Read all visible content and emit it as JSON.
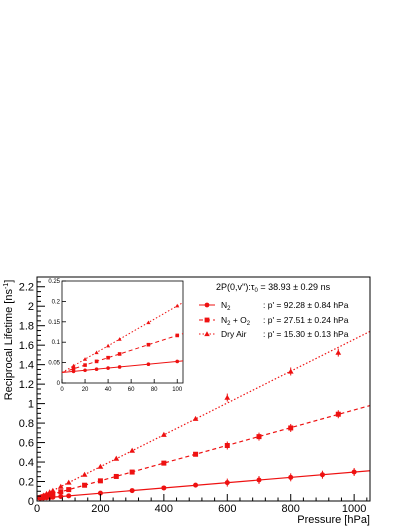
{
  "chart_data": [
    {
      "type": "scatter",
      "panel": "main",
      "xlabel": "Pressure [hPa]",
      "ylabel": "Reciprocal Lifetime [ns",
      "ylabel_sup": "-1",
      "ylabel_close": "]",
      "xlim": [
        0,
        1050
      ],
      "ylim": [
        0,
        2.3
      ],
      "x_ticks": [
        0,
        200,
        400,
        600,
        800,
        1000
      ],
      "y_ticks": [
        0,
        0.2,
        0.4,
        0.6,
        0.8,
        1,
        1.2,
        1.4,
        1.6,
        1.8,
        2,
        2.2
      ],
      "x_tick_labels": [
        "0",
        "200",
        "400",
        "600",
        "800",
        "1000"
      ],
      "y_tick_labels": [
        "0",
        "0.2",
        "0.4",
        "0.6",
        "0.8",
        "1",
        "1.2",
        "1.4",
        "1.6",
        "1.8",
        "2",
        "2.2"
      ],
      "grid": false,
      "legend_placement": "top-right",
      "legend_header": {
        "prefix": "2P(0,v'′):τ",
        "sub": "0",
        "value": " = 38.93 ± 0.29 ns"
      },
      "intercept": 0.0257,
      "color": "#ee1111",
      "series": [
        {
          "name": "N2",
          "label_main": "N",
          "label_sub": "2",
          "label_suffix": "",
          "fit_text": ": p' = 92.28 ± 0.84 hPa",
          "marker": "circle",
          "line": "solid",
          "slope": 0.000271,
          "x": [
            10,
            20,
            30,
            40,
            50,
            75,
            100,
            200,
            300,
            400,
            500,
            600,
            700,
            800,
            900,
            1000
          ],
          "y": [
            0.029,
            0.031,
            0.034,
            0.036,
            0.039,
            0.046,
            0.053,
            0.081,
            0.107,
            0.134,
            0.163,
            0.189,
            0.216,
            0.243,
            0.27,
            0.298
          ]
        },
        {
          "name": "N2 + O2",
          "label_main": "N",
          "label_sub": "2",
          "label_suffix": " + O",
          "label_sub2": "2",
          "fit_text": ": p' = 27.51 ± 0.24 hPa",
          "marker": "square",
          "line": "dashed",
          "slope": 0.000909,
          "x": [
            10,
            20,
            30,
            40,
            50,
            75,
            100,
            150,
            200,
            250,
            300,
            400,
            500,
            600,
            700,
            800,
            950
          ],
          "y": [
            0.035,
            0.044,
            0.053,
            0.062,
            0.071,
            0.095,
            0.117,
            0.162,
            0.207,
            0.252,
            0.297,
            0.389,
            0.48,
            0.57,
            0.661,
            0.75,
            0.891
          ]
        },
        {
          "name": "Dry Air",
          "label_main": "Dry Air",
          "label_sub": "",
          "label_suffix": "",
          "fit_text": ": p' = 15.30 ± 0.13 hPa",
          "marker": "triangle",
          "line": "dotted",
          "slope": 0.001634,
          "x": [
            10,
            20,
            30,
            40,
            50,
            75,
            100,
            150,
            200,
            250,
            300,
            400,
            500,
            600,
            800,
            950
          ],
          "y": [
            0.042,
            0.058,
            0.075,
            0.091,
            0.107,
            0.148,
            0.19,
            0.271,
            0.353,
            0.436,
            0.518,
            0.681,
            0.845,
            1.062,
            1.33,
            1.524
          ]
        }
      ]
    },
    {
      "type": "scatter",
      "panel": "inset",
      "xlim": [
        0,
        105
      ],
      "ylim": [
        0,
        0.25
      ],
      "x_ticks": [
        0,
        20,
        40,
        60,
        80,
        100
      ],
      "y_ticks": [
        0,
        0.05,
        0.1,
        0.15,
        0.2,
        0.25
      ],
      "x_tick_labels": [
        "0",
        "20",
        "40",
        "60",
        "80",
        "100"
      ],
      "y_tick_labels": [
        "0",
        "0.05",
        "0.1",
        "0.15",
        "0.2",
        "0.25"
      ],
      "grid": false,
      "series_x": [
        [
          10,
          20,
          30,
          40,
          50,
          75,
          100
        ],
        [
          10,
          20,
          30,
          40,
          50,
          75,
          100
        ],
        [
          10,
          20,
          30,
          40,
          50,
          75,
          100
        ]
      ]
    }
  ]
}
